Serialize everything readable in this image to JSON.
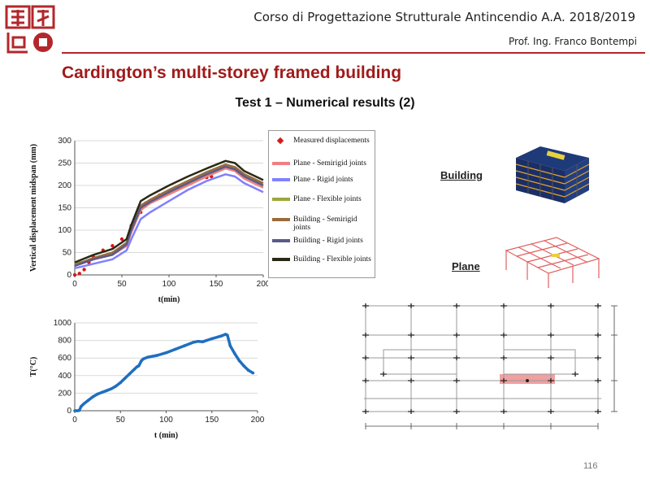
{
  "header": {
    "course": "Corso di Progettazione Strutturale Antincendio A.A. 2018/2019",
    "professor": "Prof. Ing. Franco Bontempi"
  },
  "slide": {
    "title": "Cardington’s multi-storey framed building",
    "subtitle": "Test 1 – Numerical results (2)",
    "page_number": "116"
  },
  "labels": {
    "building": "Building",
    "plane": "Plane"
  },
  "colors": {
    "accent": "#b3272b",
    "title": "#a11a1a"
  },
  "chart_data": [
    {
      "type": "line",
      "title": "",
      "xlabel": "t(min)",
      "ylabel": "Vertical displacement midspan (mm)",
      "xlim": [
        0,
        200
      ],
      "ylim": [
        0,
        300
      ],
      "xticks": [
        "0",
        "50",
        "100",
        "150",
        "200"
      ],
      "yticks": [
        "0",
        "50",
        "100",
        "150",
        "200",
        "250",
        "300"
      ],
      "grid": true,
      "legend": "right",
      "series": [
        {
          "name": "Measured displacements",
          "color": "#d61a1a",
          "style": "points",
          "x": [
            0,
            5,
            10,
            15,
            20,
            30,
            40,
            50,
            60,
            70,
            75,
            80,
            90,
            100,
            110,
            120,
            130,
            140,
            145
          ],
          "y": [
            0,
            3,
            12,
            28,
            40,
            55,
            65,
            80,
            110,
            140,
            160,
            165,
            178,
            185,
            195,
            202,
            212,
            218,
            220
          ]
        },
        {
          "name": "Plane - Semirigid joints",
          "color": "#f08080",
          "style": "line",
          "x": [
            0,
            20,
            40,
            55,
            60,
            70,
            80,
            100,
            120,
            140,
            160,
            170,
            180,
            200
          ],
          "y": [
            25,
            35,
            45,
            65,
            95,
            145,
            160,
            180,
            200,
            220,
            238,
            232,
            215,
            195
          ]
        },
        {
          "name": "Plane - Rigid joints",
          "color": "#8080ff",
          "style": "line",
          "x": [
            0,
            20,
            40,
            55,
            60,
            70,
            80,
            100,
            120,
            140,
            160,
            170,
            180,
            200
          ],
          "y": [
            15,
            25,
            35,
            55,
            80,
            125,
            140,
            165,
            190,
            210,
            225,
            220,
            205,
            185
          ]
        },
        {
          "name": "Plane - Flexible joints",
          "color": "#9aa83a",
          "style": "line",
          "x": [
            0,
            20,
            40,
            55,
            60,
            70,
            80,
            100,
            120,
            140,
            160,
            170,
            180,
            200
          ],
          "y": [
            25,
            35,
            48,
            70,
            100,
            150,
            165,
            185,
            205,
            225,
            243,
            237,
            220,
            200
          ]
        },
        {
          "name": "Building - Semirigid joints",
          "color": "#9b6a3c",
          "style": "line",
          "x": [
            0,
            20,
            40,
            55,
            60,
            70,
            80,
            100,
            120,
            140,
            160,
            170,
            180,
            200
          ],
          "y": [
            22,
            38,
            50,
            72,
            105,
            155,
            168,
            190,
            210,
            230,
            247,
            241,
            225,
            205
          ]
        },
        {
          "name": "Building - Rigid joints",
          "color": "#5a5a8a",
          "style": "line",
          "x": [
            0,
            20,
            40,
            55,
            60,
            70,
            80,
            100,
            120,
            140,
            160,
            170,
            180,
            200
          ],
          "y": [
            20,
            35,
            45,
            68,
            100,
            150,
            163,
            185,
            205,
            225,
            242,
            236,
            220,
            200
          ]
        },
        {
          "name": "Building - Flexible joints",
          "color": "#2a2a14",
          "style": "line",
          "x": [
            0,
            20,
            40,
            55,
            60,
            70,
            80,
            100,
            120,
            140,
            160,
            170,
            180,
            200
          ],
          "y": [
            28,
            45,
            58,
            80,
            112,
            165,
            178,
            200,
            220,
            238,
            255,
            250,
            232,
            212
          ]
        }
      ]
    },
    {
      "type": "line",
      "title": "",
      "xlabel": "t (min)",
      "ylabel": "T(°C)",
      "xlim": [
        0,
        200
      ],
      "ylim": [
        0,
        1000
      ],
      "xticks": [
        "0",
        "50",
        "100",
        "150",
        "200"
      ],
      "yticks": [
        "0",
        "200",
        "400",
        "600",
        "800",
        "1000"
      ],
      "grid": true,
      "series": [
        {
          "name": "",
          "color": "#1f6fbf",
          "style": "points",
          "x": [
            0,
            3,
            5,
            7,
            10,
            15,
            20,
            25,
            30,
            35,
            40,
            45,
            50,
            55,
            60,
            65,
            68,
            70,
            73,
            75,
            80,
            90,
            100,
            110,
            120,
            130,
            135,
            140,
            150,
            160,
            165,
            167,
            170,
            175,
            180,
            185,
            190,
            195
          ],
          "y": [
            0,
            0,
            5,
            50,
            80,
            120,
            160,
            190,
            210,
            230,
            250,
            280,
            320,
            370,
            420,
            470,
            500,
            510,
            570,
            590,
            610,
            630,
            660,
            700,
            740,
            780,
            790,
            785,
            820,
            850,
            870,
            860,
            740,
            650,
            570,
            510,
            460,
            430
          ]
        }
      ]
    }
  ]
}
